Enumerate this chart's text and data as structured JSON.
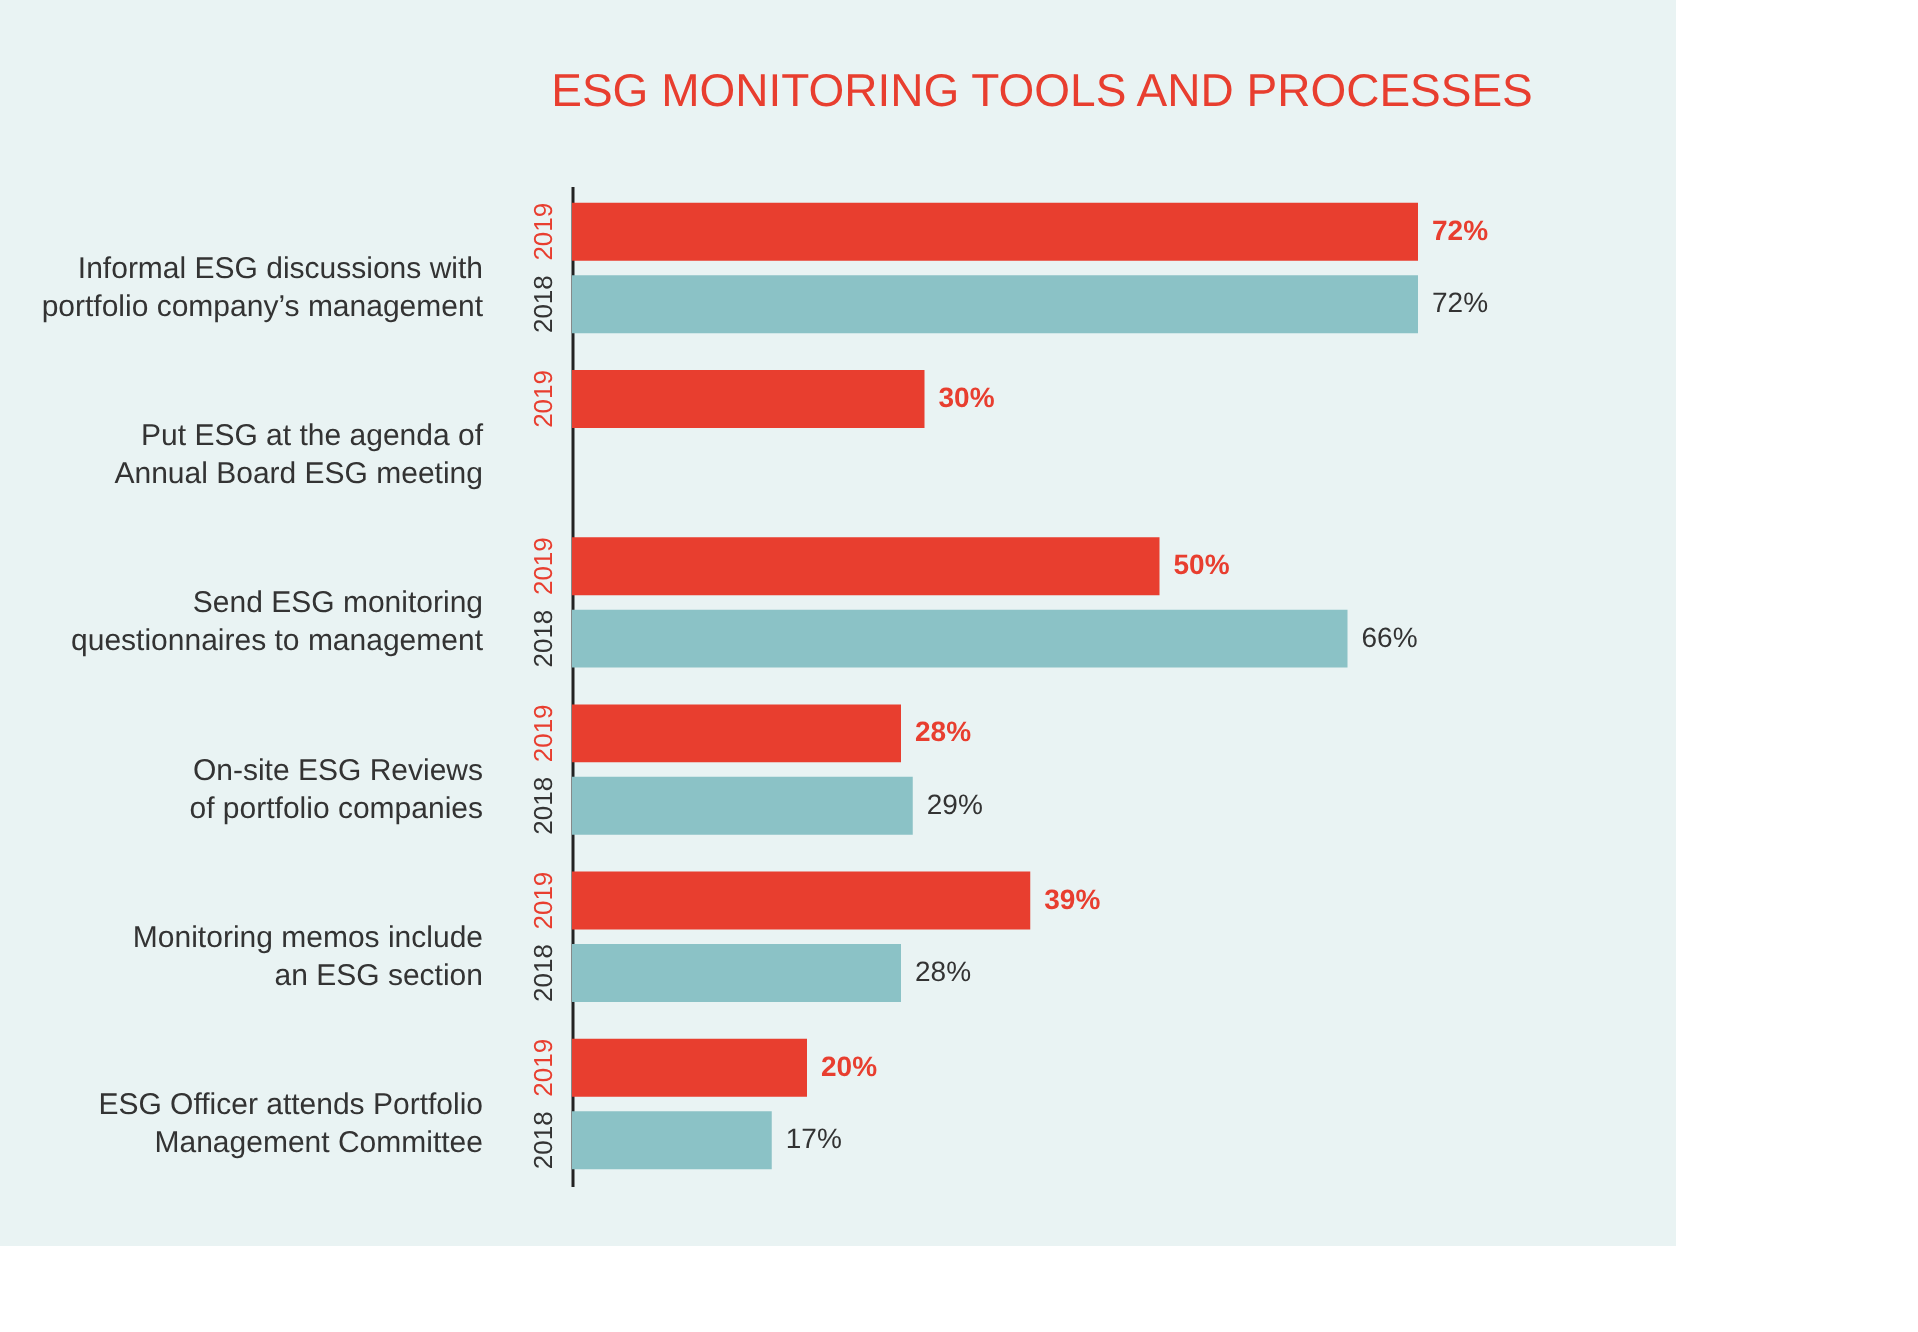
{
  "chart_data": {
    "type": "bar",
    "orientation": "horizontal",
    "title": "ESG MONITORING TOOLS AND PROCESSES",
    "categories": [
      "Informal ESG discussions with\nportfolio company’s management",
      "Put ESG at the agenda of\nAnnual Board ESG meeting",
      "Send ESG monitoring\nquestionnaires to management",
      "On-site ESG Reviews\nof portfolio companies",
      "Monitoring memos include\nan ESG section",
      "ESG Officer attends Portfolio\nManagement Committee"
    ],
    "series": [
      {
        "name": "2019",
        "color": "#e83e2f",
        "values": [
          72,
          30,
          50,
          28,
          39,
          20
        ],
        "value_labels": [
          "72%",
          "30%",
          "50%",
          "28%",
          "39%",
          "20%"
        ]
      },
      {
        "name": "2018",
        "color": "#8bc2c6",
        "values": [
          72,
          null,
          66,
          29,
          28,
          17
        ],
        "value_labels": [
          "72%",
          null,
          "66%",
          "29%",
          "28%",
          "17%"
        ]
      }
    ]
  }
}
